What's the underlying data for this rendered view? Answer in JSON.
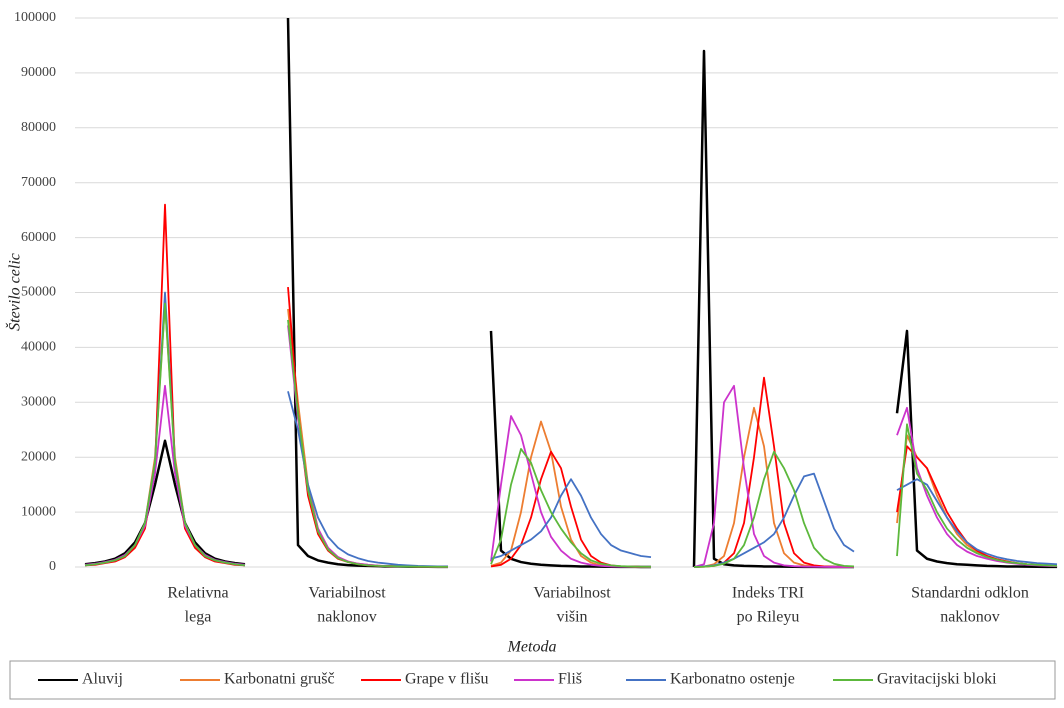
{
  "chart_data": {
    "type": "line",
    "x_label": "Metoda",
    "y_label": "Število celic",
    "categories": [
      [
        "Relativna",
        "lega"
      ],
      [
        "Variabilnost",
        "naklonov"
      ],
      [
        "Variabilnost",
        "višin"
      ],
      [
        "Indeks TRI",
        "po Rileyu"
      ],
      [
        "Standardni odklon",
        "naklonov"
      ]
    ],
    "ylim": [
      0,
      100000
    ],
    "yticks": [
      0,
      10000,
      20000,
      30000,
      40000,
      50000,
      60000,
      70000,
      80000,
      90000,
      100000
    ],
    "grid": true,
    "series": [
      {
        "name": "Aluvij",
        "color": "#000000",
        "values": [
          [
            500,
            700,
            1000,
            1500,
            2500,
            4500,
            8000,
            15000,
            23000,
            15000,
            8000,
            4500,
            2500,
            1500,
            1000,
            700,
            500
          ],
          [
            100000,
            4000,
            2000,
            1200,
            800,
            500,
            350,
            250,
            200,
            150,
            100,
            80,
            60,
            50,
            40,
            30,
            20
          ],
          [
            43000,
            3000,
            1500,
            900,
            600,
            400,
            300,
            200,
            150,
            100,
            80,
            60,
            40,
            30,
            20,
            10,
            0
          ],
          [
            0,
            94000,
            1500,
            500,
            300,
            200,
            150,
            100,
            80,
            60,
            40,
            30,
            20,
            10,
            10,
            0,
            0
          ],
          [
            28000,
            43000,
            3000,
            1500,
            1000,
            700,
            500,
            400,
            300,
            200,
            150,
            100,
            80,
            60,
            40,
            30,
            20
          ]
        ]
      },
      {
        "name": "Karbonatni grušč",
        "color": "#ed7d31",
        "values": [
          [
            300,
            500,
            800,
            1200,
            2000,
            4000,
            8000,
            20000,
            48000,
            20000,
            8000,
            4000,
            2000,
            1200,
            800,
            500,
            300
          ],
          [
            47000,
            30000,
            15000,
            7000,
            3500,
            1800,
            1000,
            600,
            400,
            250,
            150,
            100,
            80,
            60,
            40,
            30,
            20
          ],
          [
            200,
            800,
            3000,
            10000,
            20000,
            26500,
            21000,
            11000,
            5000,
            2000,
            800,
            300,
            150,
            80,
            40,
            20,
            10
          ],
          [
            0,
            100,
            500,
            2000,
            8000,
            20000,
            29000,
            22000,
            8000,
            2500,
            800,
            300,
            100,
            50,
            20,
            10,
            0
          ],
          [
            8000,
            24000,
            20000,
            18000,
            13000,
            9000,
            6000,
            4000,
            2800,
            2000,
            1400,
            1000,
            700,
            500,
            350,
            250,
            200
          ]
        ]
      },
      {
        "name": "Grape v flišu",
        "color": "#ff0000",
        "values": [
          [
            300,
            400,
            700,
            1000,
            1800,
            3500,
            7000,
            18000,
            66000,
            18000,
            7000,
            3500,
            1800,
            1000,
            700,
            400,
            300
          ],
          [
            51000,
            28000,
            13000,
            6000,
            3000,
            1500,
            900,
            500,
            300,
            200,
            150,
            100,
            80,
            60,
            40,
            30,
            20
          ],
          [
            100,
            400,
            1500,
            4000,
            9000,
            16000,
            21000,
            18000,
            11000,
            5000,
            2000,
            800,
            300,
            100,
            50,
            20,
            10
          ],
          [
            0,
            50,
            200,
            800,
            2500,
            8000,
            20000,
            34500,
            22000,
            8000,
            2500,
            800,
            300,
            100,
            40,
            10,
            0
          ],
          [
            10000,
            22000,
            20000,
            18000,
            14000,
            10000,
            7000,
            4500,
            3000,
            2000,
            1400,
            1000,
            700,
            500,
            350,
            250,
            200
          ]
        ]
      },
      {
        "name": "Fliš",
        "color": "#cc33cc",
        "values": [
          [
            400,
            600,
            900,
            1300,
            2200,
            4000,
            7500,
            17000,
            33000,
            17000,
            7500,
            4000,
            2200,
            1300,
            900,
            600,
            400
          ],
          [
            44000,
            27000,
            14000,
            7000,
            3500,
            1800,
            1000,
            600,
            400,
            250,
            150,
            100,
            80,
            60,
            40,
            30,
            20
          ],
          [
            1000,
            15000,
            27500,
            24000,
            17000,
            10000,
            5500,
            3000,
            1500,
            800,
            400,
            200,
            100,
            50,
            30,
            20,
            10
          ],
          [
            0,
            500,
            8000,
            30000,
            33000,
            18000,
            6000,
            2000,
            800,
            300,
            150,
            80,
            40,
            20,
            10,
            0,
            0
          ],
          [
            24000,
            29000,
            18000,
            13000,
            9000,
            6000,
            4000,
            2800,
            2000,
            1500,
            1100,
            800,
            600,
            400,
            300,
            200,
            150
          ]
        ]
      },
      {
        "name": "Karbonatno ostenje",
        "color": "#4472c4",
        "values": [
          [
            300,
            500,
            800,
            1200,
            2000,
            4000,
            8000,
            19000,
            50000,
            19000,
            8000,
            4000,
            2000,
            1200,
            800,
            500,
            300
          ],
          [
            32000,
            25000,
            15000,
            9000,
            5500,
            3500,
            2300,
            1600,
            1100,
            800,
            600,
            400,
            300,
            200,
            150,
            100,
            80
          ],
          [
            1500,
            2000,
            3000,
            4000,
            5000,
            6500,
            9000,
            13000,
            16000,
            13000,
            9000,
            6000,
            4000,
            3000,
            2500,
            2000,
            1800
          ],
          [
            0,
            100,
            300,
            800,
            1500,
            2500,
            3500,
            4500,
            6000,
            9000,
            13000,
            16500,
            17000,
            12000,
            7000,
            4000,
            2800
          ],
          [
            14000,
            15000,
            16000,
            15000,
            12000,
            9000,
            6500,
            4500,
            3200,
            2400,
            1800,
            1400,
            1100,
            900,
            700,
            600,
            500
          ]
        ]
      },
      {
        "name": "Gravitacijski bloki",
        "color": "#5cb83c",
        "values": [
          [
            300,
            500,
            800,
            1200,
            2000,
            4000,
            8000,
            19000,
            48000,
            19000,
            8000,
            4000,
            2000,
            1200,
            800,
            500,
            300
          ],
          [
            45000,
            28000,
            14000,
            6500,
            3200,
            1600,
            900,
            500,
            300,
            200,
            150,
            100,
            80,
            60,
            40,
            30,
            20
          ],
          [
            500,
            5000,
            15000,
            21500,
            19000,
            14000,
            10000,
            7000,
            4500,
            2500,
            1200,
            600,
            300,
            150,
            80,
            40,
            20
          ],
          [
            0,
            50,
            200,
            600,
            1500,
            4000,
            9000,
            16000,
            21000,
            18000,
            14000,
            8000,
            3500,
            1500,
            600,
            200,
            100
          ],
          [
            2000,
            26000,
            17000,
            14000,
            10000,
            7000,
            5000,
            3500,
            2500,
            1800,
            1300,
            900,
            700,
            500,
            400,
            300,
            200
          ]
        ]
      }
    ]
  }
}
